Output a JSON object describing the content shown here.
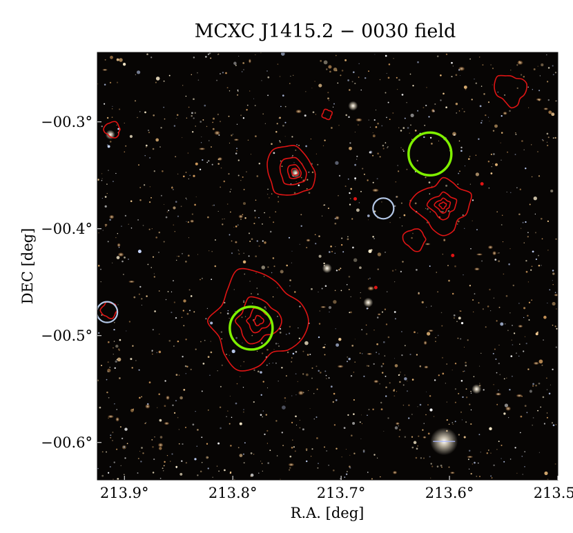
{
  "figure": {
    "title": "MCXC J1415.2 − 0030 field",
    "xlabel": "R.A. [deg]",
    "ylabel": "DEC [deg]"
  },
  "axes": {
    "x_ticks": [
      {
        "value": 213.9,
        "label": "213.9°"
      },
      {
        "value": 213.8,
        "label": "213.8°"
      },
      {
        "value": 213.7,
        "label": "213.7°"
      },
      {
        "value": 213.6,
        "label": "213.6°"
      },
      {
        "value": 213.5,
        "label": "213.5°"
      }
    ],
    "y_ticks": [
      {
        "value": -0.3,
        "label": "−00.3°"
      },
      {
        "value": -0.4,
        "label": "−00.4°"
      },
      {
        "value": -0.5,
        "label": "−00.5°"
      },
      {
        "value": -0.6,
        "label": "−00.6°"
      }
    ],
    "ra_range": [
      213.925,
      213.5
    ],
    "dec_range": [
      -0.635,
      -0.235
    ]
  },
  "colors": {
    "sky_background": "#070504",
    "contour": "#e01414",
    "green_marker": "#7ff000",
    "blue_marker": "#b4c8e8",
    "star_palette": [
      "#ffffff",
      "#fff1d0",
      "#f0c890",
      "#d8a060",
      "#c8d8ff",
      "#e8b878"
    ]
  },
  "markers": {
    "green_circles": [
      {
        "ra": 213.783,
        "dec": -0.493
      },
      {
        "ra": 213.618,
        "dec": -0.33
      }
    ],
    "blue_circles": [
      {
        "ra": 213.661,
        "dec": -0.381
      },
      {
        "ra": 213.916,
        "dec": -0.478
      }
    ]
  },
  "contours": [
    {
      "ra": 213.742,
      "dec": -0.347
    },
    {
      "ra": 213.606,
      "dec": -0.378
    },
    {
      "ra": 213.776,
      "dec": -0.486
    },
    {
      "ra": 213.543,
      "dec": -0.27
    },
    {
      "ra": 213.632,
      "dec": -0.41
    },
    {
      "ra": 213.911,
      "dec": -0.307
    },
    {
      "ra": 213.713,
      "dec": -0.293
    },
    {
      "ra": 213.914,
      "dec": -0.476
    }
  ],
  "bright_sources": [
    {
      "ra": 213.605,
      "dec": -0.599
    },
    {
      "ra": 213.742,
      "dec": -0.348
    },
    {
      "ra": 213.913,
      "dec": -0.312
    },
    {
      "ra": 213.689,
      "dec": -0.285
    },
    {
      "ra": 213.713,
      "dec": -0.437
    },
    {
      "ra": 213.575,
      "dec": -0.55
    },
    {
      "ra": 213.675,
      "dec": -0.469
    }
  ]
}
